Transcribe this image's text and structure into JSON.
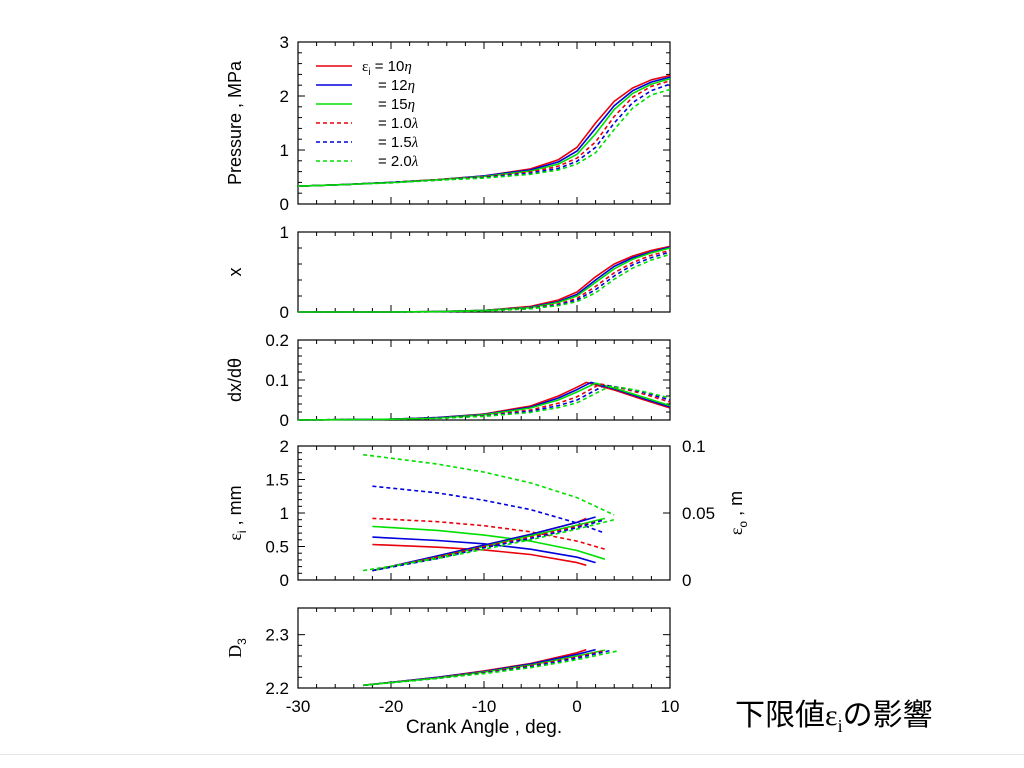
{
  "caption": {
    "before": "下限値",
    "symbol": "ε",
    "sub": "i",
    "after": "の影響"
  },
  "colors": {
    "red": "#e8000b",
    "blue": "#0000dd",
    "green": "#00e000"
  },
  "legend": [
    {
      "prefix": "ε",
      "sub": "i",
      "text": " = 10",
      "param": "η",
      "color": "red",
      "dash": false
    },
    {
      "prefix": "",
      "sub": "",
      "text": "= 12",
      "param": "η",
      "color": "blue",
      "dash": false
    },
    {
      "prefix": "",
      "sub": "",
      "text": "= 15",
      "param": "η",
      "color": "green",
      "dash": false
    },
    {
      "prefix": "",
      "sub": "",
      "text": "= 1.0",
      "param": "λ",
      "color": "red",
      "dash": true
    },
    {
      "prefix": "",
      "sub": "",
      "text": "= 1.5",
      "param": "λ",
      "color": "blue",
      "dash": true
    },
    {
      "prefix": "",
      "sub": "",
      "text": "= 2.0",
      "param": "λ",
      "color": "green",
      "dash": true
    }
  ],
  "chart_data": [
    {
      "id": "pressure",
      "type": "line",
      "ylabel": "Pressure , MPa",
      "ylim": [
        0,
        3
      ],
      "yticks": [
        "0",
        "1",
        "2",
        "3"
      ],
      "xlim": [
        -30,
        10
      ],
      "series": [
        {
          "color": "red",
          "dash": false,
          "x": [
            -30,
            -25,
            -20,
            -15,
            -10,
            -5,
            -2,
            0,
            2,
            4,
            6,
            8,
            10
          ],
          "y": [
            0.33,
            0.36,
            0.4,
            0.45,
            0.52,
            0.65,
            0.82,
            1.05,
            1.5,
            1.9,
            2.15,
            2.3,
            2.38
          ]
        },
        {
          "color": "blue",
          "dash": false,
          "x": [
            -30,
            -25,
            -20,
            -15,
            -10,
            -5,
            -2,
            0,
            2,
            4,
            6,
            8,
            10
          ],
          "y": [
            0.33,
            0.36,
            0.4,
            0.45,
            0.52,
            0.63,
            0.78,
            0.98,
            1.4,
            1.82,
            2.1,
            2.26,
            2.35
          ]
        },
        {
          "color": "green",
          "dash": false,
          "x": [
            -30,
            -25,
            -20,
            -15,
            -10,
            -5,
            -2,
            0,
            2,
            4,
            6,
            8,
            10
          ],
          "y": [
            0.33,
            0.36,
            0.4,
            0.45,
            0.51,
            0.61,
            0.74,
            0.92,
            1.3,
            1.75,
            2.05,
            2.22,
            2.32
          ]
        },
        {
          "color": "red",
          "dash": true,
          "x": [
            -30,
            -25,
            -20,
            -15,
            -10,
            -5,
            -2,
            0,
            2,
            4,
            6,
            8,
            10
          ],
          "y": [
            0.33,
            0.36,
            0.4,
            0.45,
            0.5,
            0.59,
            0.7,
            0.85,
            1.15,
            1.62,
            1.98,
            2.18,
            2.28
          ]
        },
        {
          "color": "blue",
          "dash": true,
          "x": [
            -30,
            -25,
            -20,
            -15,
            -10,
            -5,
            -2,
            0,
            2,
            4,
            6,
            8,
            10
          ],
          "y": [
            0.33,
            0.36,
            0.4,
            0.44,
            0.49,
            0.57,
            0.66,
            0.79,
            1.05,
            1.5,
            1.88,
            2.1,
            2.22
          ]
        },
        {
          "color": "green",
          "dash": true,
          "x": [
            -30,
            -25,
            -20,
            -15,
            -10,
            -5,
            -2,
            0,
            2,
            4,
            6,
            8,
            10
          ],
          "y": [
            0.33,
            0.36,
            0.39,
            0.44,
            0.48,
            0.55,
            0.63,
            0.74,
            0.95,
            1.38,
            1.78,
            2.02,
            2.12
          ]
        }
      ]
    },
    {
      "id": "x",
      "type": "line",
      "ylabel": "x",
      "ylim": [
        0,
        1
      ],
      "yticks": [
        "0",
        "1"
      ],
      "xlim": [
        -30,
        10
      ],
      "series": [
        {
          "color": "red",
          "dash": false,
          "x": [
            -30,
            -20,
            -15,
            -10,
            -5,
            -2,
            0,
            2,
            4,
            6,
            8,
            10
          ],
          "y": [
            0.0,
            0.0,
            0.005,
            0.02,
            0.07,
            0.15,
            0.25,
            0.44,
            0.6,
            0.7,
            0.77,
            0.82
          ]
        },
        {
          "color": "blue",
          "dash": false,
          "x": [
            -30,
            -20,
            -15,
            -10,
            -5,
            -2,
            0,
            2,
            4,
            6,
            8,
            10
          ],
          "y": [
            0.0,
            0.0,
            0.005,
            0.02,
            0.06,
            0.13,
            0.22,
            0.4,
            0.57,
            0.68,
            0.75,
            0.81
          ]
        },
        {
          "color": "green",
          "dash": false,
          "x": [
            -30,
            -20,
            -15,
            -10,
            -5,
            -2,
            0,
            2,
            4,
            6,
            8,
            10
          ],
          "y": [
            0.0,
            0.0,
            0.005,
            0.02,
            0.055,
            0.12,
            0.2,
            0.37,
            0.54,
            0.66,
            0.74,
            0.8
          ]
        },
        {
          "color": "red",
          "dash": true,
          "x": [
            -30,
            -20,
            -15,
            -10,
            -5,
            -2,
            0,
            2,
            4,
            6,
            8,
            10
          ],
          "y": [
            0.0,
            0.0,
            0.004,
            0.015,
            0.05,
            0.1,
            0.17,
            0.32,
            0.49,
            0.62,
            0.71,
            0.77
          ]
        },
        {
          "color": "blue",
          "dash": true,
          "x": [
            -30,
            -20,
            -15,
            -10,
            -5,
            -2,
            0,
            2,
            4,
            6,
            8,
            10
          ],
          "y": [
            0.0,
            0.0,
            0.004,
            0.013,
            0.045,
            0.09,
            0.15,
            0.28,
            0.45,
            0.59,
            0.68,
            0.75
          ]
        },
        {
          "color": "green",
          "dash": true,
          "x": [
            -30,
            -20,
            -15,
            -10,
            -5,
            -2,
            0,
            2,
            4,
            6,
            8,
            10
          ],
          "y": [
            0.0,
            0.0,
            0.004,
            0.012,
            0.04,
            0.08,
            0.13,
            0.24,
            0.41,
            0.55,
            0.65,
            0.72
          ]
        }
      ]
    },
    {
      "id": "dxdtheta",
      "type": "line",
      "ylabel": "dx/dθ",
      "ylim": [
        0,
        0.2
      ],
      "yticks": [
        "0",
        "0.1",
        "0.2"
      ],
      "xlim": [
        -30,
        10
      ],
      "series": [
        {
          "color": "red",
          "dash": false,
          "x": [
            -30,
            -20,
            -15,
            -10,
            -5,
            -2,
            0,
            1,
            4,
            7,
            10
          ],
          "y": [
            0.0,
            0.002,
            0.006,
            0.015,
            0.035,
            0.06,
            0.082,
            0.094,
            0.075,
            0.052,
            0.03
          ]
        },
        {
          "color": "blue",
          "dash": false,
          "x": [
            -30,
            -20,
            -15,
            -10,
            -5,
            -2,
            0,
            1.5,
            4,
            7,
            10
          ],
          "y": [
            0.0,
            0.002,
            0.006,
            0.014,
            0.032,
            0.055,
            0.076,
            0.094,
            0.078,
            0.055,
            0.033
          ]
        },
        {
          "color": "green",
          "dash": false,
          "x": [
            -30,
            -20,
            -15,
            -10,
            -5,
            -2,
            0,
            2,
            4,
            7,
            10
          ],
          "y": [
            0.0,
            0.002,
            0.005,
            0.013,
            0.03,
            0.05,
            0.07,
            0.092,
            0.08,
            0.058,
            0.036
          ]
        },
        {
          "color": "red",
          "dash": true,
          "x": [
            -30,
            -20,
            -15,
            -10,
            -5,
            -2,
            0,
            2.5,
            5,
            7,
            10
          ],
          "y": [
            0.0,
            0.002,
            0.005,
            0.011,
            0.025,
            0.042,
            0.058,
            0.09,
            0.078,
            0.066,
            0.045
          ]
        },
        {
          "color": "blue",
          "dash": true,
          "x": [
            -30,
            -20,
            -15,
            -10,
            -5,
            -2,
            0,
            3,
            5,
            7,
            10
          ],
          "y": [
            0.0,
            0.002,
            0.005,
            0.01,
            0.022,
            0.036,
            0.05,
            0.087,
            0.08,
            0.07,
            0.05
          ]
        },
        {
          "color": "green",
          "dash": true,
          "x": [
            -30,
            -20,
            -15,
            -10,
            -5,
            -2,
            0,
            3.5,
            5,
            7,
            10
          ],
          "y": [
            0.0,
            0.002,
            0.004,
            0.009,
            0.019,
            0.031,
            0.043,
            0.084,
            0.08,
            0.072,
            0.055
          ]
        }
      ]
    },
    {
      "id": "epsilon",
      "type": "line",
      "ylabel": {
        "symbol": "ε",
        "sub": "i",
        "rest": " , mm"
      },
      "ylim": [
        0,
        2
      ],
      "yticks": [
        "0",
        "0.5",
        "1",
        "1.5",
        "2"
      ],
      "y2label": {
        "symbol": "ε",
        "sub": "o",
        "rest": " , m"
      },
      "y2lim": [
        0,
        0.1
      ],
      "y2ticks": [
        "0",
        "0.05",
        "0.1"
      ],
      "xlim": [
        -30,
        10
      ],
      "series": [
        {
          "color": "red",
          "dash": false,
          "x": [
            -22,
            -15,
            -10,
            -5,
            0,
            1
          ],
          "y": [
            0.53,
            0.49,
            0.45,
            0.38,
            0.26,
            0.22
          ]
        },
        {
          "color": "blue",
          "dash": false,
          "x": [
            -22,
            -15,
            -10,
            -5,
            0,
            2
          ],
          "y": [
            0.64,
            0.59,
            0.54,
            0.46,
            0.34,
            0.26
          ]
        },
        {
          "color": "green",
          "dash": false,
          "x": [
            -22,
            -15,
            -10,
            -5,
            0,
            3
          ],
          "y": [
            0.8,
            0.74,
            0.67,
            0.58,
            0.44,
            0.31
          ]
        },
        {
          "color": "red",
          "dash": true,
          "x": [
            -22,
            -15,
            -10,
            -5,
            0,
            3
          ],
          "y": [
            0.92,
            0.87,
            0.81,
            0.72,
            0.58,
            0.46
          ]
        },
        {
          "color": "blue",
          "dash": true,
          "x": [
            -22,
            -15,
            -10,
            -5,
            0,
            3
          ],
          "y": [
            1.4,
            1.3,
            1.19,
            1.05,
            0.85,
            0.7
          ]
        },
        {
          "color": "green",
          "dash": true,
          "x": [
            -23,
            -15,
            -10,
            -5,
            0,
            4
          ],
          "y": [
            1.87,
            1.73,
            1.61,
            1.45,
            1.23,
            0.97
          ]
        },
        {
          "color": "red",
          "dash": false,
          "axis": "y2",
          "x": [
            -22,
            -15,
            -10,
            -5,
            0,
            1
          ],
          "y": [
            0.007,
            0.018,
            0.026,
            0.034,
            0.043,
            0.046
          ]
        },
        {
          "color": "blue",
          "dash": false,
          "axis": "y2",
          "x": [
            -22,
            -15,
            -10,
            -5,
            0,
            2
          ],
          "y": [
            0.007,
            0.018,
            0.026,
            0.034,
            0.043,
            0.047
          ]
        },
        {
          "color": "green",
          "dash": false,
          "axis": "y2",
          "x": [
            -22,
            -15,
            -10,
            -5,
            0,
            3
          ],
          "y": [
            0.007,
            0.017,
            0.025,
            0.033,
            0.041,
            0.046
          ]
        },
        {
          "color": "red",
          "dash": true,
          "axis": "y2",
          "x": [
            -22,
            -15,
            -10,
            -5,
            0,
            3
          ],
          "y": [
            0.007,
            0.017,
            0.025,
            0.032,
            0.04,
            0.045
          ]
        },
        {
          "color": "blue",
          "dash": true,
          "axis": "y2",
          "x": [
            -22,
            -15,
            -10,
            -5,
            0,
            3
          ],
          "y": [
            0.007,
            0.016,
            0.024,
            0.031,
            0.039,
            0.045
          ]
        },
        {
          "color": "green",
          "dash": true,
          "axis": "y2",
          "x": [
            -23,
            -15,
            -10,
            -5,
            0,
            4
          ],
          "y": [
            0.007,
            0.016,
            0.023,
            0.03,
            0.038,
            0.045
          ]
        }
      ]
    },
    {
      "id": "d3",
      "type": "line",
      "ylabel": {
        "symbol": "D",
        "sub": "3",
        "rest": ""
      },
      "ylim": [
        2.2,
        2.35
      ],
      "yticks": [
        "2.2",
        "2.3"
      ],
      "xlim": [
        -30,
        10
      ],
      "xticks": [
        "-30",
        "-20",
        "-10",
        "0",
        "10"
      ],
      "xlabel": "Crank Angle , deg.",
      "series": [
        {
          "color": "red",
          "dash": false,
          "x": [
            -23,
            -15,
            -10,
            -5,
            0,
            1
          ],
          "y": [
            2.205,
            2.22,
            2.232,
            2.246,
            2.266,
            2.272
          ]
        },
        {
          "color": "blue",
          "dash": false,
          "x": [
            -23,
            -15,
            -10,
            -5,
            0,
            2
          ],
          "y": [
            2.205,
            2.22,
            2.231,
            2.245,
            2.263,
            2.272
          ]
        },
        {
          "color": "green",
          "dash": false,
          "x": [
            -23,
            -15,
            -10,
            -5,
            0,
            3
          ],
          "y": [
            2.205,
            2.219,
            2.23,
            2.243,
            2.26,
            2.271
          ]
        },
        {
          "color": "red",
          "dash": true,
          "x": [
            -23,
            -15,
            -10,
            -5,
            0,
            3
          ],
          "y": [
            2.205,
            2.219,
            2.229,
            2.242,
            2.258,
            2.27
          ]
        },
        {
          "color": "blue",
          "dash": true,
          "x": [
            -23,
            -15,
            -10,
            -5,
            0,
            3.5
          ],
          "y": [
            2.205,
            2.218,
            2.228,
            2.24,
            2.256,
            2.27
          ]
        },
        {
          "color": "green",
          "dash": true,
          "x": [
            -23,
            -15,
            -10,
            -5,
            0,
            4.5
          ],
          "y": [
            2.205,
            2.218,
            2.227,
            2.238,
            2.253,
            2.27
          ]
        }
      ]
    }
  ]
}
